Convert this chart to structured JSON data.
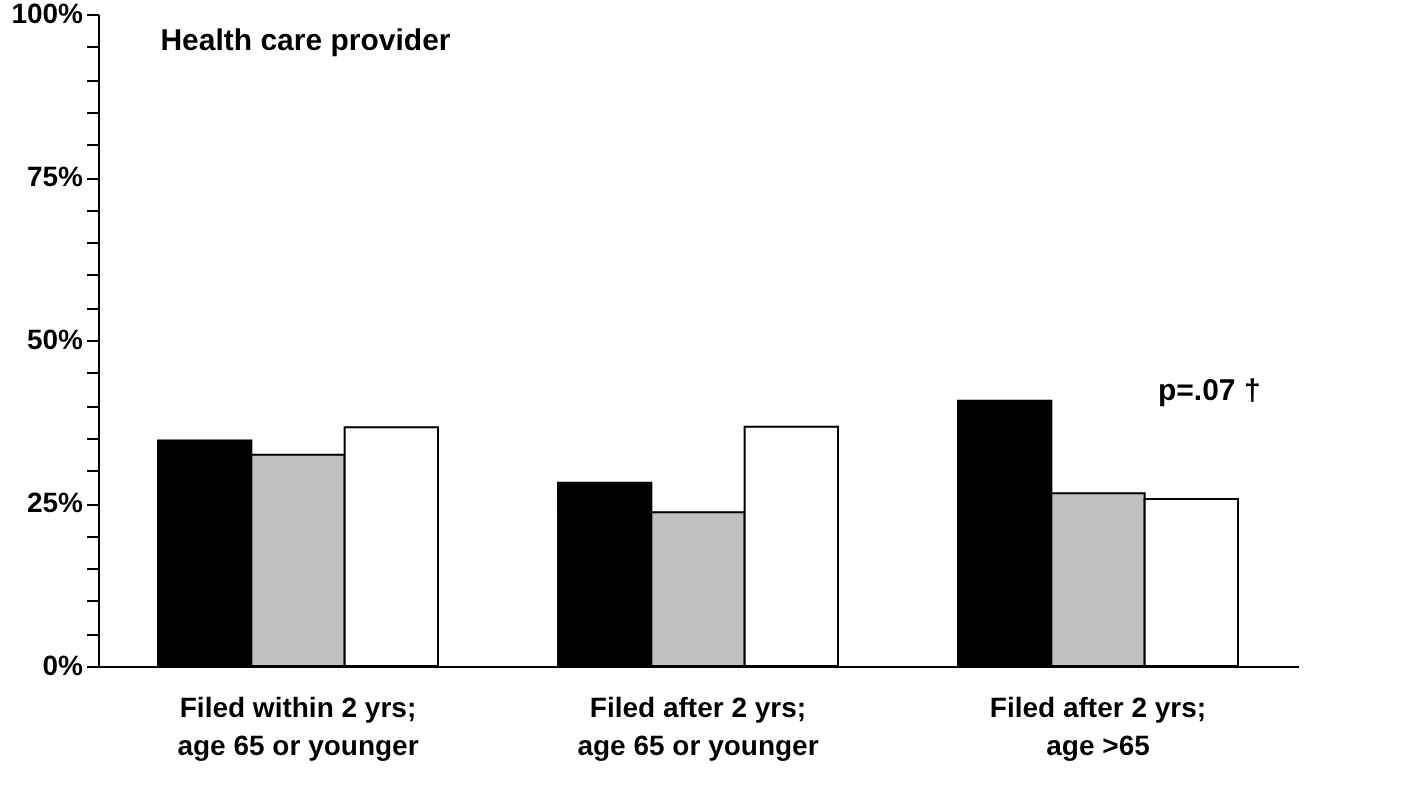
{
  "chart_data": {
    "type": "bar",
    "title": "Health care provider",
    "categories": [
      "Filed within 2 yrs; age 65 or younger",
      "Filed after 2 yrs; age 65 or younger",
      "Filed after 2 yrs; age >65"
    ],
    "series": [
      {
        "color": "#000000",
        "values": [
          34.6,
          28.1,
          40.7
        ]
      },
      {
        "color": "#c0c0c0",
        "values": [
          32.4,
          23.6,
          26.5
        ]
      },
      {
        "color": "#ffffff",
        "values": [
          36.6,
          36.7,
          25.6
        ]
      }
    ],
    "ylim": [
      0,
      100
    ],
    "yticks": [
      {
        "value": 0,
        "label": "0%"
      },
      {
        "value": 5,
        "label": null
      },
      {
        "value": 10,
        "label": null
      },
      {
        "value": 15,
        "label": null
      },
      {
        "value": 20,
        "label": null
      },
      {
        "value": 25,
        "label": "25%"
      },
      {
        "value": 30,
        "label": null
      },
      {
        "value": 35,
        "label": null
      },
      {
        "value": 40,
        "label": null
      },
      {
        "value": 45,
        "label": null
      },
      {
        "value": 50,
        "label": "50%"
      },
      {
        "value": 55,
        "label": null
      },
      {
        "value": 60,
        "label": null
      },
      {
        "value": 65,
        "label": null
      },
      {
        "value": 70,
        "label": null
      },
      {
        "value": 75,
        "label": "75%"
      },
      {
        "value": 80,
        "label": null
      },
      {
        "value": 85,
        "label": null
      },
      {
        "value": 90,
        "label": null
      },
      {
        "value": 95,
        "label": null
      },
      {
        "value": 100,
        "label": "100%"
      }
    ],
    "annotations": [
      "p=.07 †"
    ],
    "grid": false
  }
}
